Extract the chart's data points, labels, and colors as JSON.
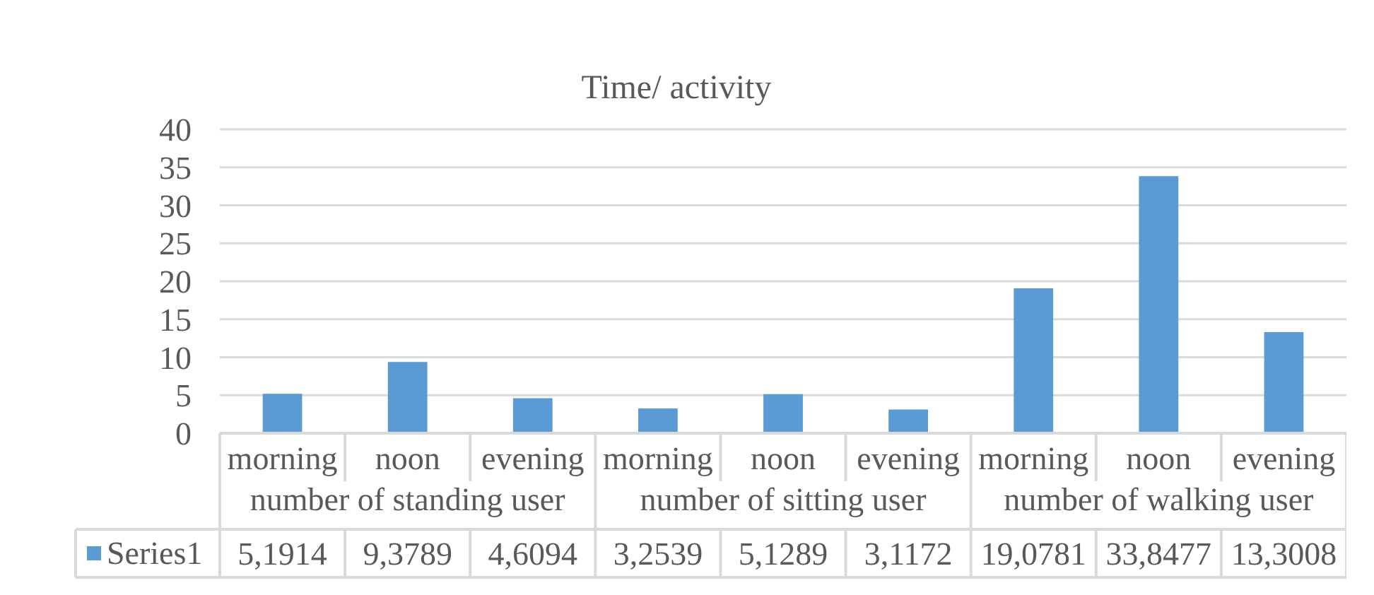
{
  "chart_data": {
    "type": "bar",
    "title": "Time/ activity",
    "categories": [
      "morning",
      "noon",
      "evening",
      "morning",
      "noon",
      "evening",
      "morning",
      "noon",
      "evening"
    ],
    "annotations": [
      "number of standing user",
      "number of sitting user",
      "number of walking user"
    ],
    "series": [
      {
        "name": "Series1",
        "color": "#5b9bd5",
        "values": [
          5.1914,
          9.3789,
          4.6094,
          3.2539,
          5.1289,
          3.1172,
          19.0781,
          33.8477,
          13.3008
        ],
        "value_labels": [
          "5,1914",
          "9,3789",
          "4,6094",
          "3,2539",
          "5,1289",
          "3,1172",
          "19,0781",
          "33,8477",
          "13,3008"
        ]
      }
    ],
    "ylim": [
      0,
      40
    ],
    "yticks": [
      0,
      5,
      10,
      15,
      20,
      25,
      30,
      35,
      40
    ],
    "grid": "y",
    "legend": "bottom"
  }
}
